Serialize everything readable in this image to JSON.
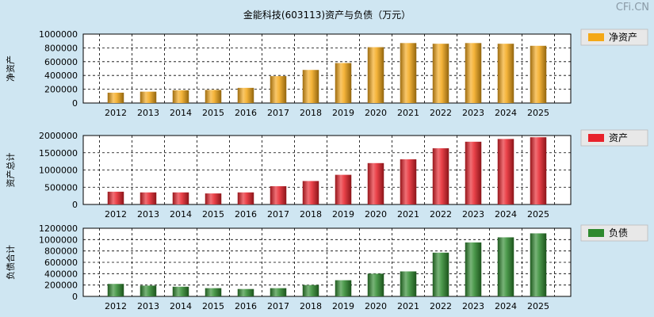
{
  "title": "金能科技(603113)资产与负债（万元）",
  "watermark": "CFi.CN",
  "colors": {
    "background": "#cfe6f2",
    "plot_background": "#ffffff",
    "net_assets": "#f4a818",
    "assets": "#e8222a",
    "liabilities": "#2f8a2f",
    "legend_box": "#e8e8e8"
  },
  "chart_data": [
    {
      "type": "bar",
      "ylabel": "净资产",
      "legend": "净资产",
      "categories": [
        "2012",
        "2013",
        "2014",
        "2015",
        "2016",
        "2017",
        "2018",
        "2019",
        "2020",
        "2021",
        "2022",
        "2023",
        "2024",
        "2025"
      ],
      "values": [
        150000,
        165000,
        185000,
        190000,
        220000,
        390000,
        480000,
        580000,
        810000,
        870000,
        860000,
        870000,
        860000,
        830000
      ],
      "ylim": [
        0,
        1000000
      ],
      "yticks": [
        "0",
        "200000",
        "400000",
        "600000",
        "800000",
        "1000000"
      ],
      "grid": true
    },
    {
      "type": "bar",
      "ylabel": "资产总计",
      "legend": "资产",
      "categories": [
        "2012",
        "2013",
        "2014",
        "2015",
        "2016",
        "2017",
        "2018",
        "2019",
        "2020",
        "2021",
        "2022",
        "2023",
        "2024",
        "2025"
      ],
      "values": [
        370000,
        350000,
        350000,
        320000,
        350000,
        530000,
        680000,
        860000,
        1200000,
        1310000,
        1630000,
        1820000,
        1900000,
        1950000
      ],
      "ylim": [
        0,
        2000000
      ],
      "yticks": [
        "0",
        "500000",
        "1000000",
        "1500000",
        "2000000"
      ],
      "grid": true
    },
    {
      "type": "bar",
      "ylabel": "负债合计",
      "legend": "负债",
      "categories": [
        "2012",
        "2013",
        "2014",
        "2015",
        "2016",
        "2017",
        "2018",
        "2019",
        "2020",
        "2021",
        "2022",
        "2023",
        "2024",
        "2025"
      ],
      "values": [
        220000,
        190000,
        170000,
        145000,
        130000,
        145000,
        200000,
        285000,
        400000,
        440000,
        770000,
        950000,
        1040000,
        1110000
      ],
      "ylim": [
        0,
        1200000
      ],
      "yticks": [
        "0",
        "200000",
        "400000",
        "600000",
        "800000",
        "1000000",
        "1200000"
      ],
      "grid": true
    }
  ]
}
